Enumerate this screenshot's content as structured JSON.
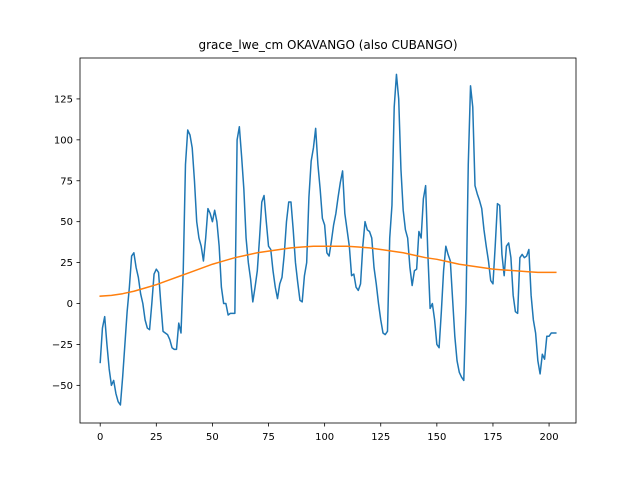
{
  "chart_data": {
    "type": "line",
    "title": "grace_lwe_cm OKAVANGO (also CUBANGO)",
    "xlabel": "",
    "ylabel": "",
    "xlim": [
      -9,
      212
    ],
    "ylim": [
      -73,
      150
    ],
    "xticks": [
      0,
      25,
      50,
      75,
      100,
      125,
      150,
      175,
      200
    ],
    "xtick_labels": [
      "0",
      "25",
      "50",
      "75",
      "100",
      "125",
      "150",
      "175",
      "200"
    ],
    "yticks": [
      -50,
      -25,
      0,
      25,
      50,
      75,
      100,
      125
    ],
    "ytick_labels": [
      "−50",
      "−25",
      "0",
      "25",
      "50",
      "75",
      "100",
      "125"
    ],
    "grid": false,
    "legend": "none",
    "colors": {
      "series_1": "#1f77b4",
      "series_2": "#ff7f0e"
    },
    "series": [
      {
        "points": [
          [
            0,
            -36
          ],
          [
            1,
            -15
          ],
          [
            2,
            -8
          ],
          [
            3,
            -25
          ],
          [
            4,
            -40
          ],
          [
            5,
            -50
          ],
          [
            6,
            -47
          ],
          [
            7,
            -55
          ],
          [
            8,
            -60
          ],
          [
            9,
            -62
          ],
          [
            10,
            -45
          ],
          [
            11,
            -25
          ],
          [
            12,
            -5
          ],
          [
            13,
            10
          ],
          [
            14,
            29
          ],
          [
            15,
            31
          ],
          [
            16,
            22
          ],
          [
            17,
            16
          ],
          [
            18,
            6
          ],
          [
            19,
            0
          ],
          [
            20,
            -10
          ],
          [
            21,
            -15
          ],
          [
            22,
            -16
          ],
          [
            23,
            0
          ],
          [
            24,
            18
          ],
          [
            25,
            21
          ],
          [
            26,
            19
          ],
          [
            27,
            0
          ],
          [
            28,
            -17
          ],
          [
            29,
            -18
          ],
          [
            30,
            -19
          ],
          [
            31,
            -22
          ],
          [
            32,
            -27
          ],
          [
            33,
            -28
          ],
          [
            34,
            -28
          ],
          [
            35,
            -12
          ],
          [
            36,
            -18
          ],
          [
            37,
            20
          ],
          [
            38,
            85
          ],
          [
            39,
            106
          ],
          [
            40,
            103
          ],
          [
            41,
            95
          ],
          [
            42,
            75
          ],
          [
            43,
            50
          ],
          [
            44,
            40
          ],
          [
            45,
            35
          ],
          [
            46,
            26
          ],
          [
            47,
            40
          ],
          [
            48,
            58
          ],
          [
            49,
            55
          ],
          [
            50,
            50
          ],
          [
            51,
            57
          ],
          [
            52,
            50
          ],
          [
            53,
            35
          ],
          [
            54,
            10
          ],
          [
            55,
            0
          ],
          [
            56,
            0
          ],
          [
            57,
            -7
          ],
          [
            58,
            -6
          ],
          [
            59,
            -6
          ],
          [
            60,
            -6
          ],
          [
            61,
            100
          ],
          [
            62,
            108
          ],
          [
            63,
            90
          ],
          [
            64,
            70
          ],
          [
            65,
            40
          ],
          [
            66,
            25
          ],
          [
            67,
            15
          ],
          [
            68,
            1
          ],
          [
            69,
            10
          ],
          [
            70,
            20
          ],
          [
            71,
            40
          ],
          [
            72,
            62
          ],
          [
            73,
            66
          ],
          [
            74,
            50
          ],
          [
            75,
            35
          ],
          [
            76,
            33
          ],
          [
            77,
            20
          ],
          [
            78,
            10
          ],
          [
            79,
            3
          ],
          [
            80,
            12
          ],
          [
            81,
            16
          ],
          [
            82,
            30
          ],
          [
            83,
            50
          ],
          [
            84,
            62
          ],
          [
            85,
            62
          ],
          [
            86,
            45
          ],
          [
            87,
            25
          ],
          [
            88,
            13
          ],
          [
            89,
            2
          ],
          [
            90,
            1
          ],
          [
            91,
            17
          ],
          [
            92,
            25
          ],
          [
            93,
            65
          ],
          [
            94,
            87
          ],
          [
            95,
            95
          ],
          [
            96,
            107
          ],
          [
            97,
            85
          ],
          [
            98,
            70
          ],
          [
            99,
            52
          ],
          [
            100,
            48
          ],
          [
            101,
            31
          ],
          [
            102,
            29
          ],
          [
            103,
            38
          ],
          [
            104,
            48
          ],
          [
            105,
            55
          ],
          [
            106,
            65
          ],
          [
            107,
            74
          ],
          [
            108,
            81
          ],
          [
            109,
            55
          ],
          [
            110,
            45
          ],
          [
            111,
            35
          ],
          [
            112,
            17
          ],
          [
            113,
            18
          ],
          [
            114,
            10
          ],
          [
            115,
            8
          ],
          [
            116,
            12
          ],
          [
            117,
            35
          ],
          [
            118,
            50
          ],
          [
            119,
            45
          ],
          [
            120,
            44
          ],
          [
            121,
            40
          ],
          [
            122,
            22
          ],
          [
            123,
            12
          ],
          [
            124,
            0
          ],
          [
            125,
            -10
          ],
          [
            126,
            -18
          ],
          [
            127,
            -19
          ],
          [
            128,
            -17
          ],
          [
            129,
            40
          ],
          [
            130,
            60
          ],
          [
            131,
            120
          ],
          [
            132,
            140
          ],
          [
            133,
            125
          ],
          [
            134,
            82
          ],
          [
            135,
            57
          ],
          [
            136,
            45
          ],
          [
            137,
            40
          ],
          [
            138,
            22
          ],
          [
            139,
            11
          ],
          [
            140,
            20
          ],
          [
            141,
            21
          ],
          [
            142,
            44
          ],
          [
            143,
            40
          ],
          [
            144,
            64
          ],
          [
            145,
            72
          ],
          [
            146,
            30
          ],
          [
            147,
            -3
          ],
          [
            148,
            0
          ],
          [
            149,
            -10
          ],
          [
            150,
            -25
          ],
          [
            151,
            -27
          ],
          [
            152,
            -5
          ],
          [
            153,
            20
          ],
          [
            154,
            35
          ],
          [
            155,
            30
          ],
          [
            156,
            26
          ],
          [
            157,
            3
          ],
          [
            158,
            -20
          ],
          [
            159,
            -35
          ],
          [
            160,
            -42
          ],
          [
            161,
            -45
          ],
          [
            162,
            -47
          ],
          [
            163,
            0
          ],
          [
            164,
            85
          ],
          [
            165,
            133
          ],
          [
            166,
            120
          ],
          [
            167,
            72
          ],
          [
            168,
            67
          ],
          [
            169,
            63
          ],
          [
            170,
            58
          ],
          [
            171,
            45
          ],
          [
            172,
            35
          ],
          [
            173,
            26
          ],
          [
            174,
            14
          ],
          [
            175,
            12
          ],
          [
            176,
            35
          ],
          [
            177,
            61
          ],
          [
            178,
            60
          ],
          [
            179,
            30
          ],
          [
            180,
            17
          ],
          [
            181,
            35
          ],
          [
            182,
            37
          ],
          [
            183,
            28
          ],
          [
            184,
            5
          ],
          [
            185,
            -5
          ],
          [
            186,
            -6
          ],
          [
            187,
            28
          ],
          [
            188,
            30
          ],
          [
            189,
            28
          ],
          [
            190,
            29
          ],
          [
            191,
            33
          ],
          [
            192,
            5
          ],
          [
            193,
            -10
          ],
          [
            194,
            -18
          ],
          [
            195,
            -35
          ],
          [
            196,
            -43
          ],
          [
            197,
            -31
          ],
          [
            198,
            -34
          ],
          [
            199,
            -20
          ],
          [
            200,
            -20
          ],
          [
            201,
            -18
          ],
          [
            202,
            -18
          ],
          [
            203,
            -18
          ]
        ]
      },
      {
        "points": [
          [
            0,
            4.5
          ],
          [
            5,
            5
          ],
          [
            10,
            6
          ],
          [
            15,
            7.5
          ],
          [
            20,
            9.5
          ],
          [
            25,
            11.5
          ],
          [
            30,
            14
          ],
          [
            35,
            16.5
          ],
          [
            40,
            19
          ],
          [
            45,
            21.5
          ],
          [
            50,
            24
          ],
          [
            55,
            26
          ],
          [
            60,
            28
          ],
          [
            65,
            29.5
          ],
          [
            70,
            31
          ],
          [
            75,
            32
          ],
          [
            80,
            33
          ],
          [
            85,
            34
          ],
          [
            90,
            34.5
          ],
          [
            95,
            35
          ],
          [
            100,
            35
          ],
          [
            105,
            35
          ],
          [
            110,
            35
          ],
          [
            115,
            34.5
          ],
          [
            120,
            34
          ],
          [
            125,
            33
          ],
          [
            130,
            32
          ],
          [
            135,
            31
          ],
          [
            140,
            29.5
          ],
          [
            145,
            28
          ],
          [
            150,
            27
          ],
          [
            155,
            25.5
          ],
          [
            160,
            24
          ],
          [
            165,
            23
          ],
          [
            170,
            22
          ],
          [
            175,
            21
          ],
          [
            180,
            20.5
          ],
          [
            185,
            20
          ],
          [
            190,
            19.5
          ],
          [
            195,
            19
          ],
          [
            200,
            19
          ],
          [
            203,
            19
          ]
        ]
      }
    ]
  }
}
